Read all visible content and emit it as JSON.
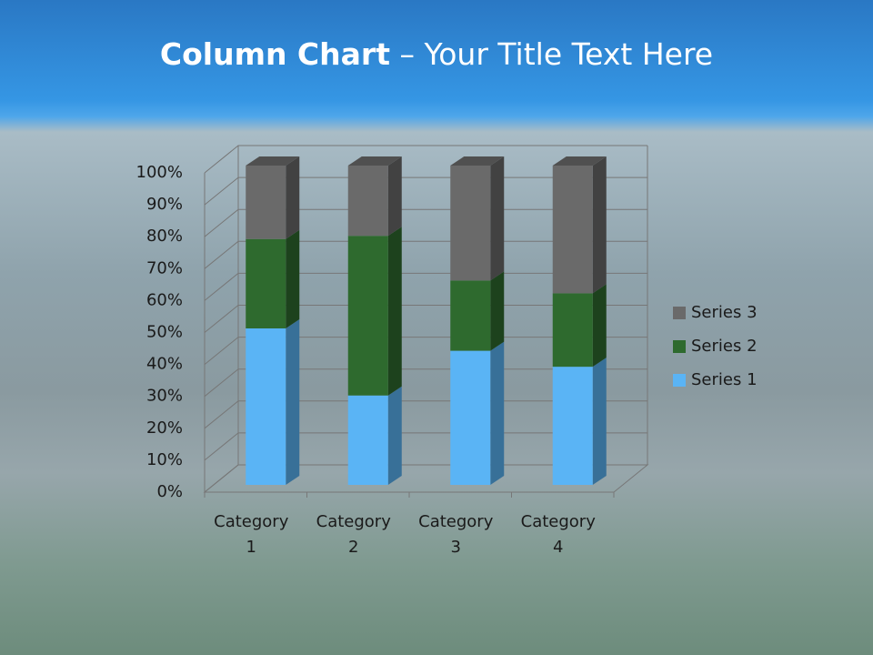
{
  "slide": {
    "title_bold": "Column Chart",
    "title_rest": "– Your Title Text Here"
  },
  "chart_data": {
    "type": "stacked_bar_3d",
    "categories": [
      "Category 1",
      "Category 2",
      "Category 3",
      "Category 4"
    ],
    "series": [
      {
        "name": "Series 1",
        "color": "#5ab4f5",
        "values": [
          49,
          28,
          42,
          37
        ]
      },
      {
        "name": "Series 2",
        "color": "#2e6a2e",
        "values": [
          28,
          50,
          22,
          23
        ]
      },
      {
        "name": "Series 3",
        "color": "#6a6a6a",
        "values": [
          23,
          22,
          36,
          40
        ]
      }
    ],
    "ylim": [
      0,
      100
    ],
    "yticks": [
      {
        "value": 0,
        "label": "0%"
      },
      {
        "value": 10,
        "label": "10%"
      },
      {
        "value": 20,
        "label": "20%"
      },
      {
        "value": 30,
        "label": "30%"
      },
      {
        "value": 40,
        "label": "40%"
      },
      {
        "value": 50,
        "label": "50%"
      },
      {
        "value": 60,
        "label": "60%"
      },
      {
        "value": 70,
        "label": "70%"
      },
      {
        "value": 80,
        "label": "80%"
      },
      {
        "value": 90,
        "label": "90%"
      },
      {
        "value": 100,
        "label": "100%"
      }
    ],
    "grid": true,
    "legend": "right"
  }
}
